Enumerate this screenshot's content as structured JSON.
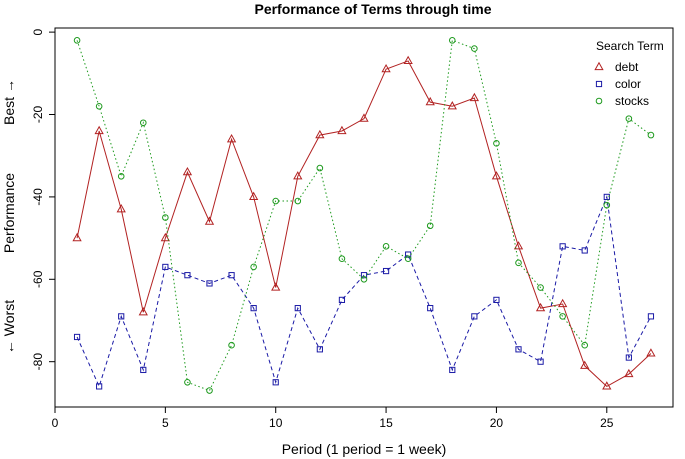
{
  "chart_data": {
    "type": "line",
    "title": "Performance of Terms through time",
    "xlabel": "Period (1 period = 1 week)",
    "ylabel": {
      "top": "Best →",
      "middle": "Performance",
      "bottom": "← Worst"
    },
    "xlim": [
      0,
      28
    ],
    "ylim": [
      -91,
      1
    ],
    "xticks": [
      0,
      5,
      10,
      15,
      20,
      25
    ],
    "yticks": [
      0,
      -20,
      -40,
      -60,
      -80
    ],
    "legend": {
      "title": "Search Term",
      "position": "top-right"
    },
    "x": [
      1,
      2,
      3,
      4,
      5,
      6,
      7,
      8,
      9,
      10,
      11,
      12,
      13,
      14,
      15,
      16,
      17,
      18,
      19,
      20,
      21,
      22,
      23,
      24,
      25,
      26,
      27
    ],
    "series": [
      {
        "name": "debt",
        "color": "#b22222",
        "marker": "triangle",
        "linestyle": "solid",
        "values": [
          -50,
          -24,
          -43,
          -68,
          -50,
          -34,
          -46,
          -26,
          -40,
          -62,
          -35,
          -25,
          -24,
          -21,
          -9,
          -7,
          -17,
          -18,
          -16,
          -35,
          -52,
          -67,
          -66,
          -81,
          -86,
          -83,
          -78
        ]
      },
      {
        "name": "color",
        "color": "#1a1aa6",
        "marker": "square",
        "linestyle": "dashed",
        "values": [
          -74,
          -86,
          -69,
          -82,
          -57,
          -59,
          -61,
          -59,
          -67,
          -85,
          -67,
          -77,
          -65,
          -59,
          -58,
          -54,
          -67,
          -82,
          -69,
          -65,
          -77,
          -80,
          -52,
          -53,
          -40,
          -79,
          -69
        ]
      },
      {
        "name": "stocks",
        "color": "#1e9a1e",
        "marker": "circle",
        "linestyle": "dotted",
        "values": [
          -2,
          -18,
          -35,
          -22,
          -45,
          -85,
          -87,
          -76,
          -57,
          -41,
          -41,
          -33,
          -55,
          -60,
          -52,
          -55,
          -47,
          -2,
          -4,
          -27,
          -56,
          -62,
          -69,
          -76,
          -42,
          -21,
          -25
        ]
      }
    ]
  }
}
